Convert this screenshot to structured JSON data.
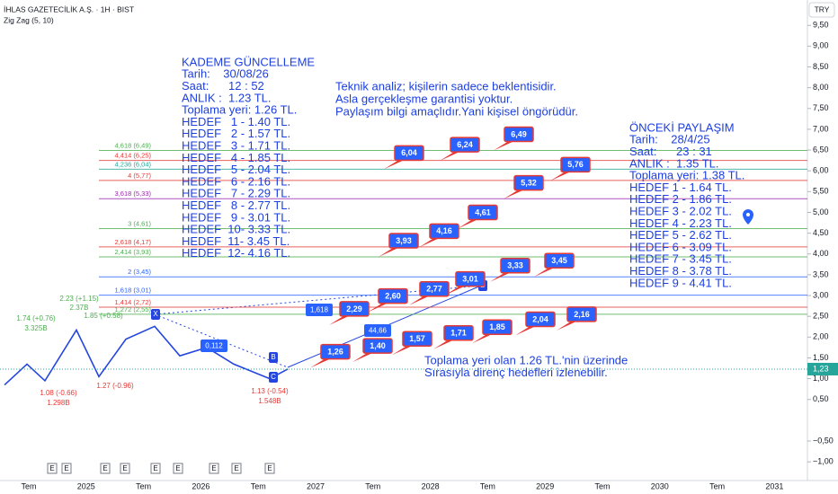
{
  "chart_data": {
    "type": "line",
    "title": "İHLAS GAZETECİLİK A.Ş. · 1H · BIST",
    "currency": "TRY",
    "ylim": [
      -1.45,
      10.11
    ],
    "yticks": [
      {
        "value": 9.5,
        "label": "9,50"
      },
      {
        "value": 9,
        "label": "9,00"
      },
      {
        "value": 8.5,
        "label": "8,50"
      },
      {
        "value": 8,
        "label": "8,00"
      },
      {
        "value": 7.5,
        "label": "7,50"
      },
      {
        "value": 7,
        "label": "7,00"
      },
      {
        "value": 6.5,
        "label": "6,50"
      },
      {
        "value": 6,
        "label": "6,00"
      },
      {
        "value": 5.5,
        "label": "5,50"
      },
      {
        "value": 5,
        "label": "5,00"
      },
      {
        "value": 4.5,
        "label": "4,50"
      },
      {
        "value": 4,
        "label": "4,00"
      },
      {
        "value": 3.5,
        "label": "3,50"
      },
      {
        "value": 3,
        "label": "3,00"
      },
      {
        "value": 2.5,
        "label": "2,50"
      },
      {
        "value": 2,
        "label": "2,00"
      },
      {
        "value": 1.5,
        "label": "1,50"
      },
      {
        "value": 1,
        "label": "1,00"
      },
      {
        "value": 0.5,
        "label": "0,50"
      },
      {
        "value": -0.5,
        "label": "−0,50"
      },
      {
        "value": -1,
        "label": "−1,00"
      }
    ],
    "x_labels": [
      "Tem",
      "2025",
      "Tem",
      "2026",
      "Tem",
      "2027",
      "Tem",
      "2028",
      "Tem",
      "2029",
      "Tem",
      "2030",
      "Tem",
      "2031"
    ],
    "series": [
      {
        "name": "Zig Zag (5, 10)",
        "color": "#2445e0",
        "values": [
          0.85,
          1.35,
          0.95,
          2.17,
          1.05,
          1.95,
          2.26,
          1.55,
          1.75,
          1.35,
          1.0,
          1.23
        ]
      }
    ],
    "last_price": {
      "value": 1.23,
      "label": "1,23"
    },
    "fib_levels": [
      {
        "label": "4,618 (6,49)",
        "value": 6.49,
        "color": "#4caf50"
      },
      {
        "label": "4,414 (6,25)",
        "value": 6.25,
        "color": "#e53935"
      },
      {
        "label": "4,236 (6,04)",
        "value": 6.04,
        "color": "#26a69a"
      },
      {
        "label": "4 (5,77)",
        "value": 5.77,
        "color": "#e53935"
      },
      {
        "label": "3,618 (5,33)",
        "value": 5.33,
        "color": "#9c27b0"
      },
      {
        "label": "3 (4,61)",
        "value": 4.61,
        "color": "#4caf50"
      },
      {
        "label": "2,618 (4,17)",
        "value": 4.17,
        "color": "#e53935"
      },
      {
        "label": "2,414 (3,93)",
        "value": 3.93,
        "color": "#4caf50"
      },
      {
        "label": "2 (3,45)",
        "value": 3.45,
        "color": "#2962ff"
      },
      {
        "label": "1,618 (3,01)",
        "value": 3.01,
        "color": "#2962ff"
      },
      {
        "label": "1,414 (2,72)",
        "value": 2.72,
        "color": "#e53935"
      },
      {
        "label": "1,272 (2,55)",
        "value": 2.55,
        "color": "#4caf50"
      }
    ],
    "targets": [
      {
        "label": "6,04",
        "value": 6.04
      },
      {
        "label": "6,24",
        "value": 6.24
      },
      {
        "label": "6,49",
        "value": 6.49
      },
      {
        "label": "5,76",
        "value": 5.76
      },
      {
        "label": "5,32",
        "value": 5.32
      },
      {
        "label": "4,61",
        "value": 4.61
      },
      {
        "label": "4,16",
        "value": 4.16
      },
      {
        "label": "3,93",
        "value": 3.93
      },
      {
        "label": "3,33",
        "value": 3.33
      },
      {
        "label": "3,45",
        "value": 3.45
      },
      {
        "label": "3,01",
        "value": 3.01
      },
      {
        "label": "2,77",
        "value": 2.77
      },
      {
        "label": "2,60",
        "value": 2.6
      },
      {
        "label": "2,29",
        "value": 2.29
      },
      {
        "label": "2,16",
        "value": 2.16
      },
      {
        "label": "2,04",
        "value": 2.04
      },
      {
        "label": "1,85",
        "value": 1.85
      },
      {
        "label": "1,71",
        "value": 1.71
      },
      {
        "label": "1,57",
        "value": 1.57
      },
      {
        "label": "1,40",
        "value": 1.4
      },
      {
        "label": "1,26",
        "value": 1.26
      }
    ],
    "other_badges": [
      "1,618",
      "44,66",
      "0,112"
    ],
    "pattern_points": [
      "X",
      "B",
      "C",
      "D"
    ],
    "pivot_labels": [
      "1.74 (+0.76)",
      "3.325B",
      "2.23 (+1.15)",
      "2.37B",
      "1.85 (+0.58)",
      "1.08 (-0.66)",
      "1.298B",
      "1.27 (-0.96)",
      "1.13 (-0.54)",
      "1.548B"
    ],
    "event_marker": "E",
    "annotations": {
      "left": [
        "KADEME GÜNCELLEME",
        "Tarih:    30/08/26",
        "Saat:      12 : 52",
        "ANLIK :  1.23 TL.",
        "Toplama yeri: 1.26 TL.",
        "HEDEF   1 - 1.40 TL.",
        "HEDEF   2 - 1.57 TL.",
        "HEDEF   3 - 1.71 TL.",
        "HEDEF   4 - 1.85 TL.",
        "HEDEF   5 - 2.04 TL.",
        "HEDEF   6 - 2.16 TL.",
        "HEDEF   7 - 2.29 TL.",
        "HEDEF   8 - 2.77 TL.",
        "HEDEF   9 - 3.01 TL.",
        "HEDEF  10- 3.33 TL.",
        "HEDEF  11- 3.45 TL.",
        "HEDEF  12- 4.16 TL."
      ],
      "middle": [
        "Teknik analiz; kişilerin sadece beklentisidir.",
        "Asla gerçekleşme garantisi yoktur.",
        "Paylaşım bilgi amaçlıdır.Yani kişisel öngörüdür."
      ],
      "right": [
        "ÖNCEKİ PAYLAŞIM",
        "Tarih:    28/4/25",
        "Saat:      23 : 31",
        "ANLIK :  1.35 TL.",
        "Toplama yeri: 1.38 TL.",
        "HEDEF 1 - 1.64 TL.",
        "HEDEF 2 - 1.86 TL.",
        "HEDEF 3 - 2.02 TL.",
        "HEDEF 4 - 2.23 TL.",
        "HEDEF 5 - 2.62 TL.",
        "HEDEF 6 - 3.09 TL.",
        "HEDEF 7 - 3.45 TL.",
        "HEDEF 8 - 3.78 TL.",
        "HEDEF 9 - 4.41 TL."
      ],
      "bottom": [
        "Toplama yeri olan 1.26 TL.'nin üzerinde",
        "Sırasıyla direnç hedefleri izlenebilir."
      ]
    }
  }
}
